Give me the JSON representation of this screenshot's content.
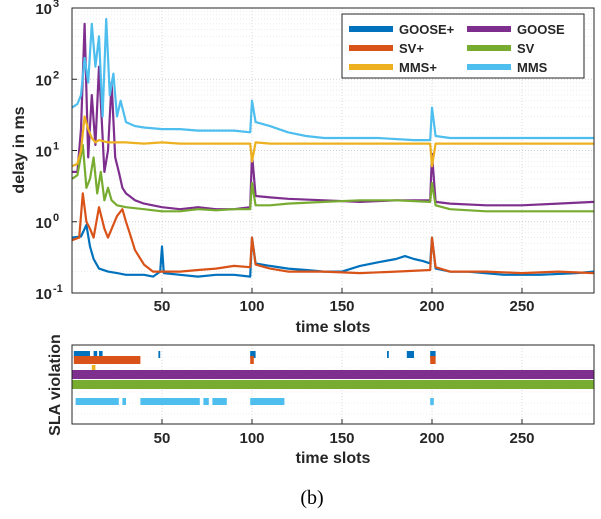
{
  "caption": "(b)",
  "chart_data": [
    {
      "type": "line",
      "xlabel": "time slots",
      "ylabel": "delay in ms",
      "yscale": "log",
      "xlim": [
        0,
        290
      ],
      "ylim": [
        0.1,
        1000
      ],
      "xticks": [
        "50",
        "100",
        "150",
        "200",
        "250"
      ],
      "yticks": [
        "10",
        "10",
        "10",
        "10",
        "10"
      ],
      "ytick_exponents": [
        "-1",
        "0",
        "1",
        "2",
        "3"
      ],
      "grid": true,
      "legend_position": "top-right",
      "series": [
        {
          "name": "GOOSE+",
          "color": "#0072BD",
          "points": [
            [
              0,
              0.6
            ],
            [
              5,
              0.62
            ],
            [
              8,
              0.9
            ],
            [
              10,
              0.45
            ],
            [
              12,
              0.3
            ],
            [
              15,
              0.22
            ],
            [
              20,
              0.2
            ],
            [
              25,
              0.19
            ],
            [
              30,
              0.18
            ],
            [
              40,
              0.18
            ],
            [
              45,
              0.17
            ],
            [
              49,
              0.2
            ],
            [
              50,
              0.45
            ],
            [
              51,
              0.19
            ],
            [
              60,
              0.18
            ],
            [
              70,
              0.17
            ],
            [
              80,
              0.18
            ],
            [
              90,
              0.18
            ],
            [
              99,
              0.17
            ],
            [
              100,
              0.6
            ],
            [
              102,
              0.26
            ],
            [
              110,
              0.24
            ],
            [
              120,
              0.22
            ],
            [
              130,
              0.21
            ],
            [
              140,
              0.2
            ],
            [
              150,
              0.2
            ],
            [
              160,
              0.24
            ],
            [
              170,
              0.27
            ],
            [
              180,
              0.3
            ],
            [
              185,
              0.33
            ],
            [
              190,
              0.3
            ],
            [
              195,
              0.28
            ],
            [
              199,
              0.26
            ],
            [
              200,
              0.6
            ],
            [
              202,
              0.22
            ],
            [
              210,
              0.2
            ],
            [
              220,
              0.2
            ],
            [
              240,
              0.18
            ],
            [
              260,
              0.18
            ],
            [
              280,
              0.19
            ],
            [
              290,
              0.2
            ]
          ]
        },
        {
          "name": "GOOSE",
          "color": "#7E2F8E",
          "points": [
            [
              0,
              5
            ],
            [
              3,
              5
            ],
            [
              5,
              20
            ],
            [
              7,
              600
            ],
            [
              9,
              8
            ],
            [
              11,
              60
            ],
            [
              13,
              12
            ],
            [
              15,
              150
            ],
            [
              18,
              5
            ],
            [
              20,
              10
            ],
            [
              22,
              90
            ],
            [
              24,
              8
            ],
            [
              26,
              5
            ],
            [
              28,
              3
            ],
            [
              30,
              2.5
            ],
            [
              35,
              2
            ],
            [
              40,
              1.8
            ],
            [
              50,
              1.6
            ],
            [
              60,
              1.5
            ],
            [
              70,
              1.6
            ],
            [
              80,
              1.5
            ],
            [
              90,
              1.5
            ],
            [
              99,
              1.6
            ],
            [
              100,
              9
            ],
            [
              102,
              2.3
            ],
            [
              110,
              2.2
            ],
            [
              120,
              2.1
            ],
            [
              140,
              2.0
            ],
            [
              160,
              1.9
            ],
            [
              180,
              2.0
            ],
            [
              199,
              2.0
            ],
            [
              200,
              9
            ],
            [
              202,
              1.9
            ],
            [
              210,
              1.8
            ],
            [
              230,
              1.7
            ],
            [
              250,
              1.7
            ],
            [
              270,
              1.8
            ],
            [
              290,
              1.9
            ]
          ]
        },
        {
          "name": "SV+",
          "color": "#D95319",
          "points": [
            [
              0,
              0.55
            ],
            [
              4,
              0.6
            ],
            [
              6,
              2.5
            ],
            [
              8,
              1.0
            ],
            [
              10,
              0.8
            ],
            [
              12,
              0.6
            ],
            [
              15,
              1.6
            ],
            [
              18,
              0.8
            ],
            [
              20,
              0.6
            ],
            [
              25,
              1.2
            ],
            [
              28,
              1.5
            ],
            [
              30,
              1.0
            ],
            [
              32,
              0.7
            ],
            [
              35,
              0.4
            ],
            [
              40,
              0.25
            ],
            [
              45,
              0.2
            ],
            [
              50,
              0.2
            ],
            [
              60,
              0.2
            ],
            [
              70,
              0.21
            ],
            [
              80,
              0.22
            ],
            [
              90,
              0.24
            ],
            [
              99,
              0.23
            ],
            [
              100,
              0.6
            ],
            [
              102,
              0.25
            ],
            [
              110,
              0.22
            ],
            [
              120,
              0.2
            ],
            [
              140,
              0.2
            ],
            [
              160,
              0.19
            ],
            [
              180,
              0.2
            ],
            [
              199,
              0.21
            ],
            [
              200,
              0.6
            ],
            [
              202,
              0.23
            ],
            [
              210,
              0.2
            ],
            [
              230,
              0.2
            ],
            [
              250,
              0.19
            ],
            [
              270,
              0.2
            ],
            [
              290,
              0.19
            ]
          ]
        },
        {
          "name": "SV",
          "color": "#77AC30",
          "points": [
            [
              0,
              4
            ],
            [
              3,
              4.5
            ],
            [
              6,
              12
            ],
            [
              8,
              3
            ],
            [
              10,
              4
            ],
            [
              12,
              8
            ],
            [
              14,
              2.5
            ],
            [
              16,
              5
            ],
            [
              18,
              2
            ],
            [
              20,
              3
            ],
            [
              22,
              2
            ],
            [
              25,
              1.7
            ],
            [
              30,
              1.6
            ],
            [
              40,
              1.5
            ],
            [
              50,
              1.4
            ],
            [
              60,
              1.4
            ],
            [
              70,
              1.5
            ],
            [
              80,
              1.45
            ],
            [
              90,
              1.5
            ],
            [
              99,
              1.5
            ],
            [
              100,
              3.5
            ],
            [
              102,
              1.7
            ],
            [
              110,
              1.7
            ],
            [
              120,
              1.8
            ],
            [
              140,
              1.9
            ],
            [
              160,
              2.0
            ],
            [
              180,
              2.0
            ],
            [
              199,
              1.9
            ],
            [
              200,
              3.5
            ],
            [
              202,
              1.7
            ],
            [
              210,
              1.5
            ],
            [
              230,
              1.4
            ],
            [
              250,
              1.4
            ],
            [
              270,
              1.4
            ],
            [
              290,
              1.4
            ]
          ]
        },
        {
          "name": "MMS+",
          "color": "#EDB120",
          "points": [
            [
              0,
              6
            ],
            [
              3,
              6.5
            ],
            [
              5,
              10
            ],
            [
              7,
              30
            ],
            [
              9,
              20
            ],
            [
              11,
              15
            ],
            [
              13,
              13
            ],
            [
              15,
              14
            ],
            [
              20,
              13
            ],
            [
              30,
              13
            ],
            [
              40,
              12.5
            ],
            [
              50,
              13
            ],
            [
              60,
              12.5
            ],
            [
              70,
              12.5
            ],
            [
              80,
              12.5
            ],
            [
              90,
              12.5
            ],
            [
              99,
              12.5
            ],
            [
              100,
              7
            ],
            [
              102,
              13
            ],
            [
              110,
              12.5
            ],
            [
              130,
              12.5
            ],
            [
              150,
              12.5
            ],
            [
              170,
              12.5
            ],
            [
              199,
              12.5
            ],
            [
              200,
              6
            ],
            [
              202,
              12.5
            ],
            [
              220,
              12.5
            ],
            [
              240,
              12.5
            ],
            [
              260,
              12.5
            ],
            [
              290,
              12.5
            ]
          ]
        },
        {
          "name": "MMS",
          "color": "#4DBEEE",
          "points": [
            [
              0,
              40
            ],
            [
              3,
              45
            ],
            [
              5,
              60
            ],
            [
              7,
              200
            ],
            [
              9,
              90
            ],
            [
              11,
              600
            ],
            [
              13,
              150
            ],
            [
              15,
              400
            ],
            [
              17,
              30
            ],
            [
              19,
              700
            ],
            [
              21,
              60
            ],
            [
              23,
              120
            ],
            [
              25,
              30
            ],
            [
              27,
              50
            ],
            [
              30,
              25
            ],
            [
              35,
              22
            ],
            [
              40,
              21
            ],
            [
              50,
              20
            ],
            [
              60,
              20
            ],
            [
              70,
              19
            ],
            [
              80,
              19
            ],
            [
              90,
              19
            ],
            [
              99,
              18
            ],
            [
              100,
              50
            ],
            [
              102,
              25
            ],
            [
              110,
              22
            ],
            [
              120,
              18
            ],
            [
              130,
              16
            ],
            [
              140,
              15
            ],
            [
              150,
              15
            ],
            [
              170,
              15
            ],
            [
              190,
              14
            ],
            [
              199,
              14
            ],
            [
              200,
              40
            ],
            [
              202,
              16
            ],
            [
              210,
              15
            ],
            [
              230,
              15
            ],
            [
              250,
              15
            ],
            [
              270,
              15
            ],
            [
              290,
              15
            ]
          ]
        }
      ],
      "legend": [
        "GOOSE+",
        "GOOSE",
        "SV+",
        "SV",
        "MMS+",
        "MMS"
      ]
    },
    {
      "type": "bar",
      "subtype": "event-raster",
      "xlabel": "time slots",
      "ylabel": "SLA violation",
      "xlim": [
        0,
        290
      ],
      "xticks": [
        "50",
        "100",
        "150",
        "200",
        "250"
      ],
      "grid": true,
      "rows": [
        {
          "name": "GOOSE+",
          "color": "#0072BD",
          "intervals": [
            [
              1,
              10
            ],
            [
              12,
              14
            ],
            [
              15,
              17
            ],
            [
              48,
              49
            ],
            [
              99,
              102
            ],
            [
              175,
              176
            ],
            [
              186,
              190
            ],
            [
              199,
              202
            ]
          ]
        },
        {
          "name": "SV+",
          "color": "#D95319",
          "intervals": [
            [
              1,
              38
            ],
            [
              99,
              101
            ],
            [
              199,
              202
            ]
          ]
        },
        {
          "name": "MMS+",
          "color": "#EDB120",
          "intervals": [
            [
              11,
              13
            ]
          ]
        },
        {
          "name": "GOOSE",
          "color": "#7E2F8E",
          "intervals": [
            [
              0,
              290
            ]
          ]
        },
        {
          "name": "SV",
          "color": "#77AC30",
          "intervals": [
            [
              0,
              290
            ]
          ]
        },
        {
          "name": "MMS",
          "color": "#4DBEEE",
          "intervals": [
            [
              2,
              26
            ],
            [
              28,
              30
            ],
            [
              38,
              71
            ],
            [
              73,
              76
            ],
            [
              78,
              86
            ],
            [
              99,
              118
            ],
            [
              199,
              201
            ]
          ]
        }
      ]
    }
  ]
}
